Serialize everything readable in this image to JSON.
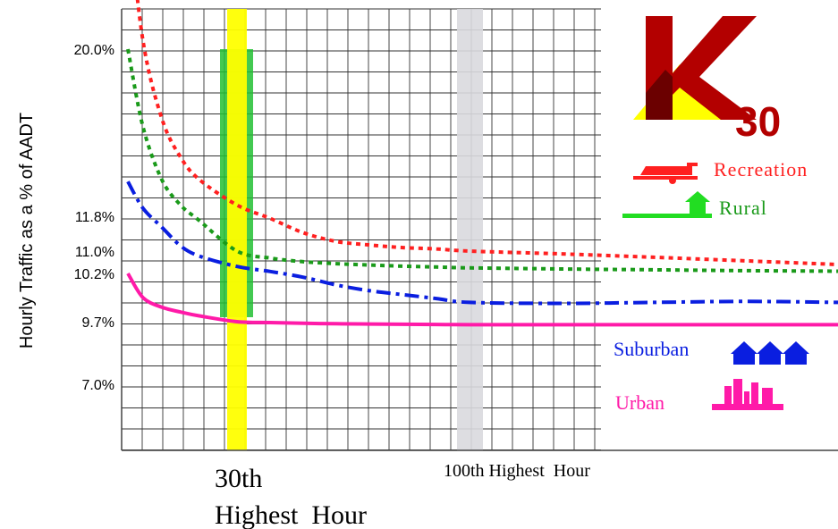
{
  "chart_data": {
    "type": "line",
    "ylabel": "Hourly Traffic as a % of AADT",
    "yticks": [
      "20.0%",
      "11.8%",
      "11.0%",
      "10.2%",
      "9.7%",
      "7.0%"
    ],
    "x_markers": {
      "hour30": [
        "30th",
        "Highest  Hour"
      ],
      "hour100": "100th Highest  Hour"
    },
    "x_range": [
      1,
      300
    ],
    "logo": {
      "letter": "K",
      "subscript": "30"
    },
    "series": [
      {
        "name": "Recreation",
        "color": "#ff2020",
        "style": "dotted",
        "x": [
          1,
          5,
          10,
          15,
          20,
          30,
          40,
          50,
          60,
          70,
          80,
          90,
          100,
          150,
          200,
          250,
          300
        ],
        "y": [
          28.0,
          20.5,
          16.6,
          14.7,
          13.6,
          12.35,
          11.75,
          11.42,
          11.22,
          11.14,
          11.08,
          11.05,
          11.0,
          10.9,
          10.78,
          10.65,
          10.52
        ]
      },
      {
        "name": "Rural",
        "color": "#1a9a1a",
        "style": "dotted",
        "x": [
          1,
          5,
          10,
          15,
          20,
          30,
          40,
          50,
          60,
          70,
          80,
          90,
          100,
          150,
          200,
          250,
          300
        ],
        "y": [
          20.0,
          16.2,
          13.6,
          12.35,
          11.7,
          11.0,
          10.75,
          10.62,
          10.55,
          10.5,
          10.46,
          10.43,
          10.4,
          10.36,
          10.33,
          10.3,
          10.28
        ]
      },
      {
        "name": "Suburban",
        "color": "#0a1ee0",
        "style": "dash-dot",
        "x": [
          1,
          5,
          10,
          15,
          20,
          30,
          40,
          50,
          60,
          70,
          80,
          90,
          100,
          150,
          200,
          250,
          300
        ],
        "y": [
          13.5,
          12.2,
          11.55,
          11.12,
          10.82,
          10.45,
          10.27,
          10.16,
          10.08,
          10.02,
          9.98,
          9.94,
          9.9,
          9.89,
          9.9,
          9.91,
          9.9
        ]
      },
      {
        "name": "Urban",
        "color": "#ff1aa8",
        "style": "solid",
        "x": [
          1,
          5,
          10,
          15,
          20,
          30,
          40,
          50,
          60,
          70,
          80,
          90,
          100,
          150,
          200,
          250,
          300
        ],
        "y": [
          10.2,
          9.95,
          9.85,
          9.8,
          9.76,
          9.7,
          9.66,
          9.63,
          9.61,
          9.6,
          9.59,
          9.58,
          9.57,
          9.57,
          9.57,
          9.57,
          9.57
        ]
      }
    ],
    "legend": [
      {
        "label": "Recreation",
        "color": "#ff2020",
        "icon": "trailer-icon"
      },
      {
        "label": "Rural",
        "color": "#1a9a1a",
        "icon": "house-icon"
      },
      {
        "label": "Suburban",
        "color": "#0a1ee0",
        "icon": "houses-icon"
      },
      {
        "label": "Urban",
        "color": "#ff1aa8",
        "icon": "skyline-icon"
      }
    ],
    "grid": true,
    "highlight_bands": [
      "30th hour (yellow, green box)",
      "100th hour (grey)"
    ]
  }
}
